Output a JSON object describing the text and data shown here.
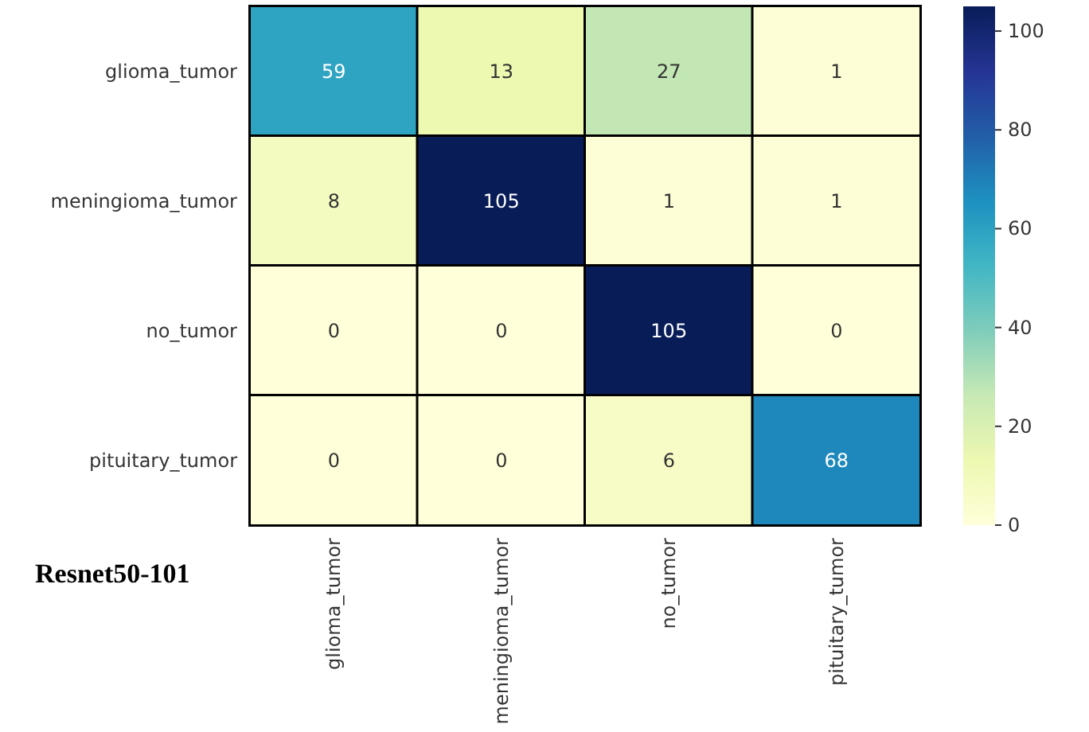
{
  "chart_data": {
    "type": "heatmap",
    "categories": [
      "glioma_tumor",
      "meningioma_tumor",
      "no_tumor",
      "pituitary_tumor"
    ],
    "y_categories": [
      "glioma_tumor",
      "meningioma_tumor",
      "no_tumor",
      "pituitary_tumor"
    ],
    "cells": [
      [
        59,
        13,
        27,
        1
      ],
      [
        8,
        105,
        1,
        1
      ],
      [
        0,
        0,
        105,
        0
      ],
      [
        0,
        0,
        6,
        68
      ]
    ],
    "clim": [
      0,
      105
    ],
    "cticks": [
      0,
      20,
      40,
      60,
      80,
      100
    ],
    "data_labels": true,
    "annotations": [
      "Resnet50-101"
    ]
  }
}
